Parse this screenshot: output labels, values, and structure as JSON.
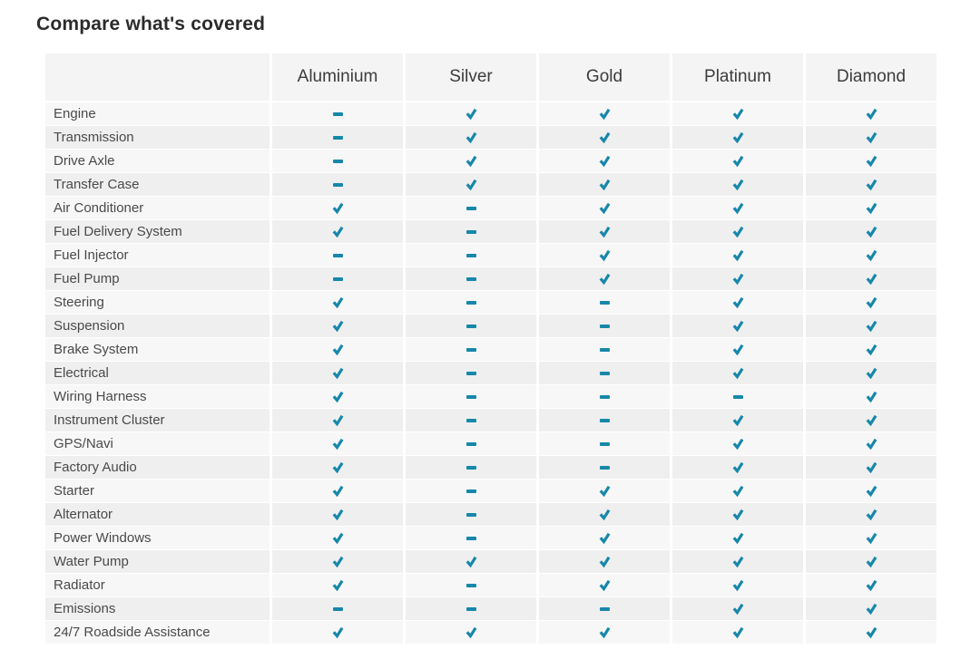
{
  "page": {
    "title": "Compare what's covered"
  },
  "colors": {
    "accent": "#1787aa",
    "header_bg": "#f4f4f4",
    "row_odd_bg": "#f7f7f7",
    "row_even_bg": "#efefef"
  },
  "icons": {
    "covered": "check-icon",
    "not_covered": "dash-icon"
  },
  "table": {
    "plans": [
      "Aluminium",
      "Silver",
      "Gold",
      "Platinum",
      "Diamond"
    ],
    "rows": [
      {
        "label": "Engine",
        "cells": [
          "dash",
          "check",
          "check",
          "check",
          "check"
        ]
      },
      {
        "label": "Transmission",
        "cells": [
          "dash",
          "check",
          "check",
          "check",
          "check"
        ]
      },
      {
        "label": "Drive Axle",
        "cells": [
          "dash",
          "check",
          "check",
          "check",
          "check"
        ]
      },
      {
        "label": "Transfer Case",
        "cells": [
          "dash",
          "check",
          "check",
          "check",
          "check"
        ]
      },
      {
        "label": "Air Conditioner",
        "cells": [
          "check",
          "dash",
          "check",
          "check",
          "check"
        ]
      },
      {
        "label": "Fuel Delivery System",
        "cells": [
          "check",
          "dash",
          "check",
          "check",
          "check"
        ]
      },
      {
        "label": "Fuel Injector",
        "cells": [
          "dash",
          "dash",
          "check",
          "check",
          "check"
        ]
      },
      {
        "label": "Fuel Pump",
        "cells": [
          "dash",
          "dash",
          "check",
          "check",
          "check"
        ]
      },
      {
        "label": "Steering",
        "cells": [
          "check",
          "dash",
          "dash",
          "check",
          "check"
        ]
      },
      {
        "label": "Suspension",
        "cells": [
          "check",
          "dash",
          "dash",
          "check",
          "check"
        ]
      },
      {
        "label": "Brake System",
        "cells": [
          "check",
          "dash",
          "dash",
          "check",
          "check"
        ]
      },
      {
        "label": "Electrical",
        "cells": [
          "check",
          "dash",
          "dash",
          "check",
          "check"
        ]
      },
      {
        "label": "Wiring Harness",
        "cells": [
          "check",
          "dash",
          "dash",
          "dash",
          "check"
        ]
      },
      {
        "label": "Instrument Cluster",
        "cells": [
          "check",
          "dash",
          "dash",
          "check",
          "check"
        ]
      },
      {
        "label": "GPS/Navi",
        "cells": [
          "check",
          "dash",
          "dash",
          "check",
          "check"
        ]
      },
      {
        "label": "Factory Audio",
        "cells": [
          "check",
          "dash",
          "dash",
          "check",
          "check"
        ]
      },
      {
        "label": "Starter",
        "cells": [
          "check",
          "dash",
          "check",
          "check",
          "check"
        ]
      },
      {
        "label": "Alternator",
        "cells": [
          "check",
          "dash",
          "check",
          "check",
          "check"
        ]
      },
      {
        "label": "Power Windows",
        "cells": [
          "check",
          "dash",
          "check",
          "check",
          "check"
        ]
      },
      {
        "label": "Water Pump",
        "cells": [
          "check",
          "check",
          "check",
          "check",
          "check"
        ]
      },
      {
        "label": "Radiator",
        "cells": [
          "check",
          "dash",
          "check",
          "check",
          "check"
        ]
      },
      {
        "label": "Emissions",
        "cells": [
          "dash",
          "dash",
          "dash",
          "check",
          "check"
        ]
      },
      {
        "label": "24/7 Roadside Assistance",
        "cells": [
          "check",
          "check",
          "check",
          "check",
          "check"
        ]
      }
    ]
  }
}
